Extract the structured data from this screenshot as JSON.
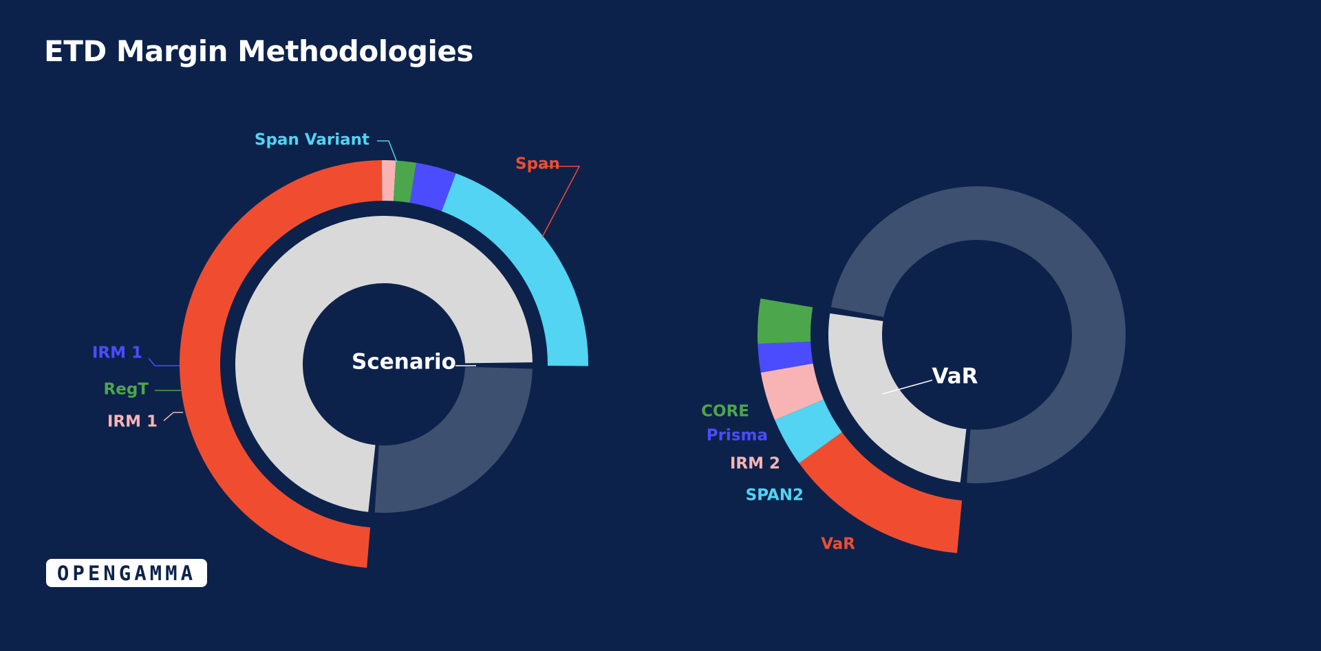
{
  "title": "ETD Margin Methodologies",
  "logo_text": "OPENGAMMA",
  "colors": {
    "background": "#0d224b",
    "span": "#f04d30",
    "span_variant": "#52d4f2",
    "irm1": "#4c4cff",
    "regt": "#4ca64c",
    "irm1_light": "#f8b4b4",
    "grey": "#d9d9d9",
    "slate": "#3e5070",
    "core": "#4ca64c",
    "prisma": "#4c4cff",
    "irm2": "#f8b4b4",
    "span2": "#52d4f2",
    "var": "#f04d30"
  },
  "chart_data": [
    {
      "type": "pie",
      "variant": "nested-donut",
      "center_label": "Scenario",
      "inner_ring": [
        {
          "name": "Scenario",
          "value": 0.738,
          "color": "#d9d9d9"
        },
        {
          "name": "",
          "value": 0.262,
          "color": "#3e5070"
        }
      ],
      "outer_ring": [
        {
          "name": "Span",
          "value": 0.485,
          "color": "#f04d30"
        },
        {
          "name": "IRM 1",
          "value": 0.011,
          "color": "#f8b4b4"
        },
        {
          "name": "RegT",
          "value": 0.016,
          "color": "#4ca64c"
        },
        {
          "name": "IRM 1",
          "value": 0.032,
          "color": "#4c4cff"
        },
        {
          "name": "Span Variant",
          "value": 0.194,
          "color": "#52d4f2"
        }
      ]
    },
    {
      "type": "pie",
      "variant": "nested-donut",
      "center_label": "VaR",
      "inner_ring": [
        {
          "name": "VaR",
          "value": 0.262,
          "color": "#d9d9d9"
        },
        {
          "name": "",
          "value": 0.738,
          "color": "#3e5070"
        }
      ],
      "outer_ring": [
        {
          "name": "VaR",
          "value": 0.136,
          "color": "#f04d30"
        },
        {
          "name": "SPAN2",
          "value": 0.036,
          "color": "#52d4f2"
        },
        {
          "name": "IRM 2",
          "value": 0.036,
          "color": "#f8b4b4"
        },
        {
          "name": "Prisma",
          "value": 0.021,
          "color": "#4c4cff"
        },
        {
          "name": "CORE",
          "value": 0.033,
          "color": "#4ca64c"
        }
      ]
    }
  ]
}
